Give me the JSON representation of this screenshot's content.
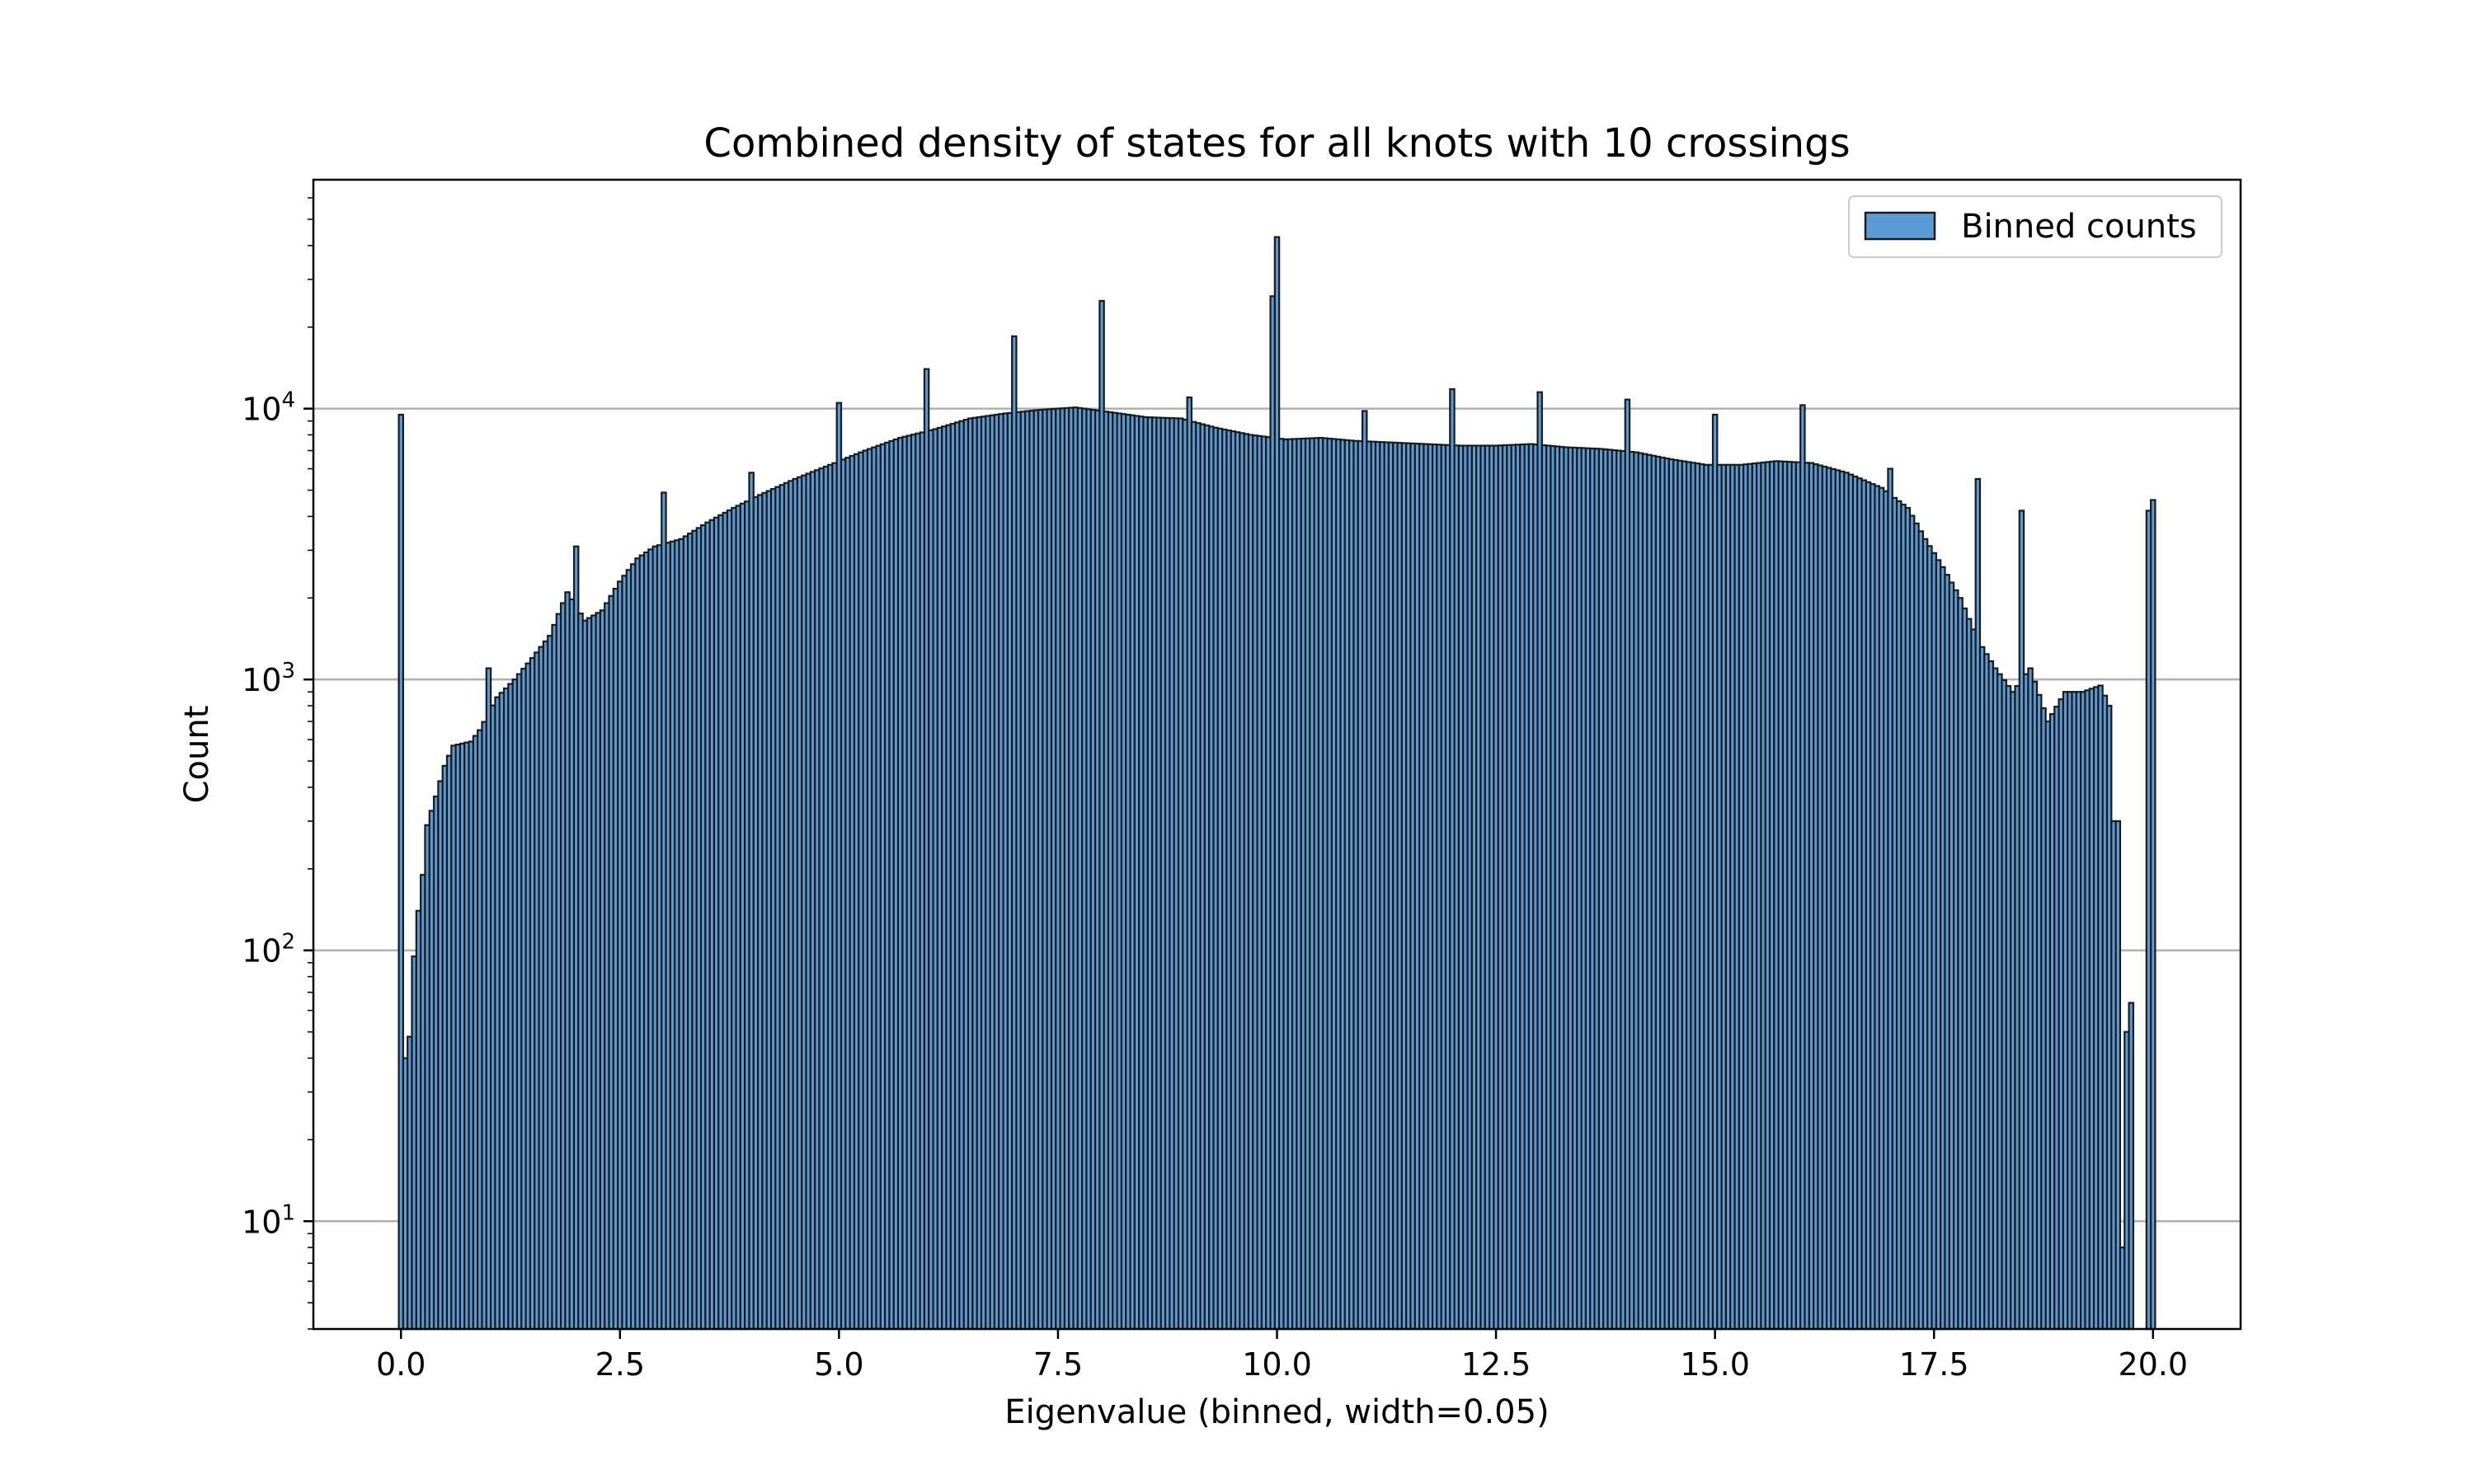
{
  "chart_data": {
    "type": "bar",
    "title": "Combined density of states for all knots with 10 crossings",
    "xlabel": "Eigenvalue (binned, width=0.05)",
    "ylabel": "Count",
    "yscale": "log",
    "bin_width": 0.05,
    "xlim": [
      -1.0,
      21.0
    ],
    "ylim": [
      4,
      70000
    ],
    "xticks": [
      "0.0",
      "2.5",
      "5.0",
      "7.5",
      "10.0",
      "12.5",
      "15.0",
      "17.5",
      "20.0"
    ],
    "yticks": [
      {
        "base": "10",
        "exp": "1"
      },
      {
        "base": "10",
        "exp": "2"
      },
      {
        "base": "10",
        "exp": "3"
      },
      {
        "base": "10",
        "exp": "4"
      }
    ],
    "grid": "horizontal",
    "legend": {
      "position": "top-right",
      "entries": [
        "Binned counts"
      ]
    },
    "colors": {
      "bar_fill": "#5b9bd5",
      "bar_edge": "#1a1a1a",
      "grid": "#b0b0b0"
    },
    "spikes": [
      {
        "x": 0.0,
        "y": 9500
      },
      {
        "x": 0.05,
        "y": 40
      },
      {
        "x": 0.1,
        "y": 48
      },
      {
        "x": 1.0,
        "y": 1100
      },
      {
        "x": 2.0,
        "y": 3100
      },
      {
        "x": 3.0,
        "y": 4900
      },
      {
        "x": 4.0,
        "y": 5800
      },
      {
        "x": 5.0,
        "y": 10500
      },
      {
        "x": 6.0,
        "y": 14000
      },
      {
        "x": 7.0,
        "y": 18500
      },
      {
        "x": 8.0,
        "y": 25000
      },
      {
        "x": 9.0,
        "y": 11000
      },
      {
        "x": 9.95,
        "y": 26000
      },
      {
        "x": 10.0,
        "y": 43000
      },
      {
        "x": 11.0,
        "y": 9800
      },
      {
        "x": 12.0,
        "y": 11800
      },
      {
        "x": 13.0,
        "y": 11500
      },
      {
        "x": 14.0,
        "y": 10800
      },
      {
        "x": 15.0,
        "y": 9500
      },
      {
        "x": 16.0,
        "y": 10300
      },
      {
        "x": 17.0,
        "y": 6000
      },
      {
        "x": 18.0,
        "y": 5500
      },
      {
        "x": 18.5,
        "y": 4200
      },
      {
        "x": 19.65,
        "y": 8
      },
      {
        "x": 19.7,
        "y": 50
      },
      {
        "x": 19.75,
        "y": 64
      },
      {
        "x": 19.95,
        "y": 4200
      },
      {
        "x": 20.0,
        "y": 4600
      }
    ],
    "envelope": [
      [
        0.15,
        95
      ],
      [
        0.2,
        140
      ],
      [
        0.25,
        190
      ],
      [
        0.3,
        290
      ],
      [
        0.4,
        370
      ],
      [
        0.5,
        480
      ],
      [
        0.6,
        570
      ],
      [
        0.8,
        590
      ],
      [
        0.9,
        650
      ],
      [
        1.1,
        860
      ],
      [
        1.3,
        1000
      ],
      [
        1.5,
        1200
      ],
      [
        1.7,
        1450
      ],
      [
        1.9,
        2100
      ],
      [
        2.1,
        1650
      ],
      [
        2.3,
        1800
      ],
      [
        2.5,
        2300
      ],
      [
        2.7,
        2800
      ],
      [
        2.9,
        3100
      ],
      [
        3.2,
        3300
      ],
      [
        3.5,
        3800
      ],
      [
        3.8,
        4300
      ],
      [
        4.1,
        4800
      ],
      [
        4.5,
        5500
      ],
      [
        4.9,
        6200
      ],
      [
        5.3,
        7000
      ],
      [
        5.7,
        7800
      ],
      [
        6.1,
        8400
      ],
      [
        6.5,
        9200
      ],
      [
        6.9,
        9600
      ],
      [
        7.3,
        9900
      ],
      [
        7.7,
        10100
      ],
      [
        8.1,
        9700
      ],
      [
        8.5,
        9300
      ],
      [
        8.9,
        9200
      ],
      [
        9.3,
        8500
      ],
      [
        9.7,
        8000
      ],
      [
        10.1,
        7700
      ],
      [
        10.5,
        7800
      ],
      [
        10.9,
        7600
      ],
      [
        11.3,
        7500
      ],
      [
        11.7,
        7400
      ],
      [
        12.1,
        7300
      ],
      [
        12.5,
        7300
      ],
      [
        12.9,
        7400
      ],
      [
        13.3,
        7200
      ],
      [
        13.7,
        7100
      ],
      [
        14.1,
        6900
      ],
      [
        14.5,
        6500
      ],
      [
        14.9,
        6200
      ],
      [
        15.3,
        6200
      ],
      [
        15.7,
        6400
      ],
      [
        16.1,
        6300
      ],
      [
        16.5,
        5800
      ],
      [
        16.9,
        5100
      ],
      [
        17.2,
        4300
      ],
      [
        17.4,
        3300
      ],
      [
        17.6,
        2600
      ],
      [
        17.8,
        2000
      ],
      [
        18.0,
        1400
      ],
      [
        18.2,
        1100
      ],
      [
        18.4,
        900
      ],
      [
        18.6,
        1100
      ],
      [
        18.8,
        700
      ],
      [
        19.0,
        900
      ],
      [
        19.2,
        900
      ],
      [
        19.4,
        950
      ],
      [
        19.5,
        800
      ],
      [
        19.55,
        300
      ],
      [
        19.6,
        0
      ]
    ]
  }
}
